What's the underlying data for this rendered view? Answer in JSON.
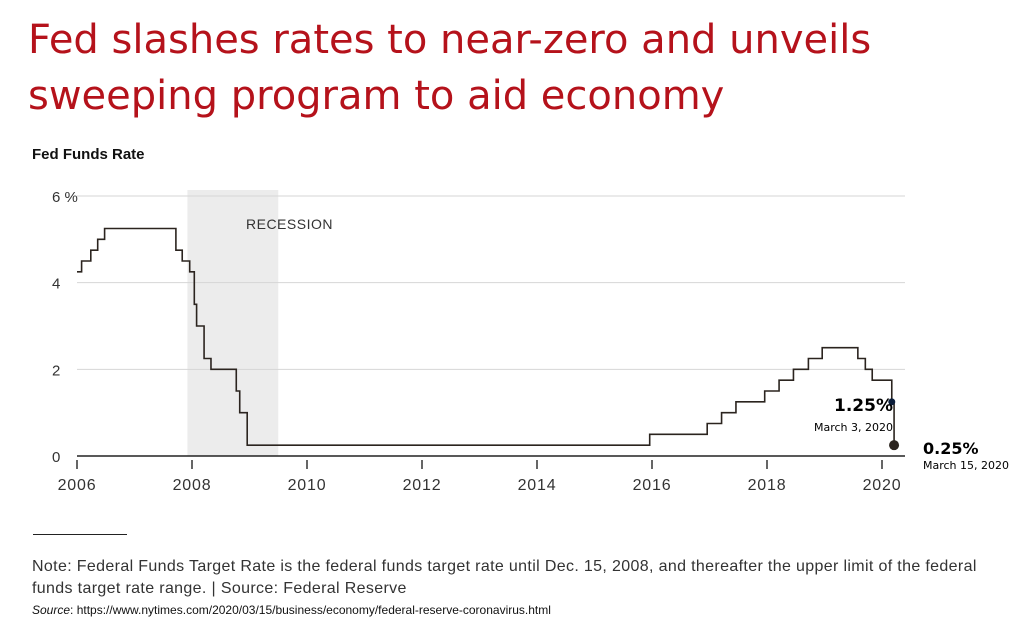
{
  "headline": "Fed slashes rates to near-zero and unveils sweeping program to aid economy",
  "note": "Note: Federal Funds Target Rate is the federal funds target rate until Dec. 15, 2008, and thereafter the upper limit of the federal funds target rate range. | Source: Federal Reserve",
  "source": {
    "label": "Source",
    "url": ": https://www.nytimes.com/2020/03/15/business/economy/federal-reserve-coronavirus.html"
  },
  "colors": {
    "headline": "#b5121b",
    "line": "#2b241f",
    "recession": "#ececec",
    "grid": "#d6d6d6"
  },
  "chart_data": {
    "type": "line",
    "title": "Fed Funds Rate",
    "xlabel": "",
    "ylabel": "",
    "xlim": [
      2006,
      2020.4
    ],
    "ylim": [
      0,
      6
    ],
    "x_ticks": [
      2006,
      2008,
      2010,
      2012,
      2014,
      2016,
      2018,
      2020
    ],
    "x_tick_labels": [
      "2006",
      "2008",
      "2010",
      "2012",
      "2014",
      "2016",
      "2018",
      "2020"
    ],
    "y_ticks": [
      0,
      2,
      4,
      6
    ],
    "y_tick_labels": [
      "0",
      "2",
      "4",
      "6 %"
    ],
    "grid": true,
    "recession": {
      "label": "RECESSION",
      "start": 2007.92,
      "end": 2009.5
    },
    "series": [
      {
        "name": "Fed Funds Target Rate",
        "step": true,
        "points": [
          [
            2006.0,
            4.25
          ],
          [
            2006.08,
            4.5
          ],
          [
            2006.24,
            4.75
          ],
          [
            2006.36,
            5.0
          ],
          [
            2006.48,
            5.25
          ],
          [
            2007.72,
            4.75
          ],
          [
            2007.83,
            4.5
          ],
          [
            2007.96,
            4.25
          ],
          [
            2008.04,
            3.5
          ],
          [
            2008.08,
            3.0
          ],
          [
            2008.21,
            2.25
          ],
          [
            2008.33,
            2.0
          ],
          [
            2008.77,
            1.5
          ],
          [
            2008.83,
            1.0
          ],
          [
            2008.96,
            0.25
          ],
          [
            2015.96,
            0.5
          ],
          [
            2016.96,
            0.75
          ],
          [
            2017.21,
            1.0
          ],
          [
            2017.46,
            1.25
          ],
          [
            2017.96,
            1.5
          ],
          [
            2018.21,
            1.75
          ],
          [
            2018.46,
            2.0
          ],
          [
            2018.72,
            2.25
          ],
          [
            2018.96,
            2.5
          ],
          [
            2019.58,
            2.25
          ],
          [
            2019.71,
            2.0
          ],
          [
            2019.83,
            1.75
          ],
          [
            2020.17,
            1.25
          ],
          [
            2020.21,
            0.25
          ]
        ]
      }
    ],
    "annotations": [
      {
        "x": 2020.17,
        "y": 1.25,
        "value_label": "1.25%",
        "date_label": "March 3, 2020"
      },
      {
        "x": 2020.21,
        "y": 0.25,
        "value_label": "0.25%",
        "date_label": "March 15, 2020"
      }
    ]
  }
}
